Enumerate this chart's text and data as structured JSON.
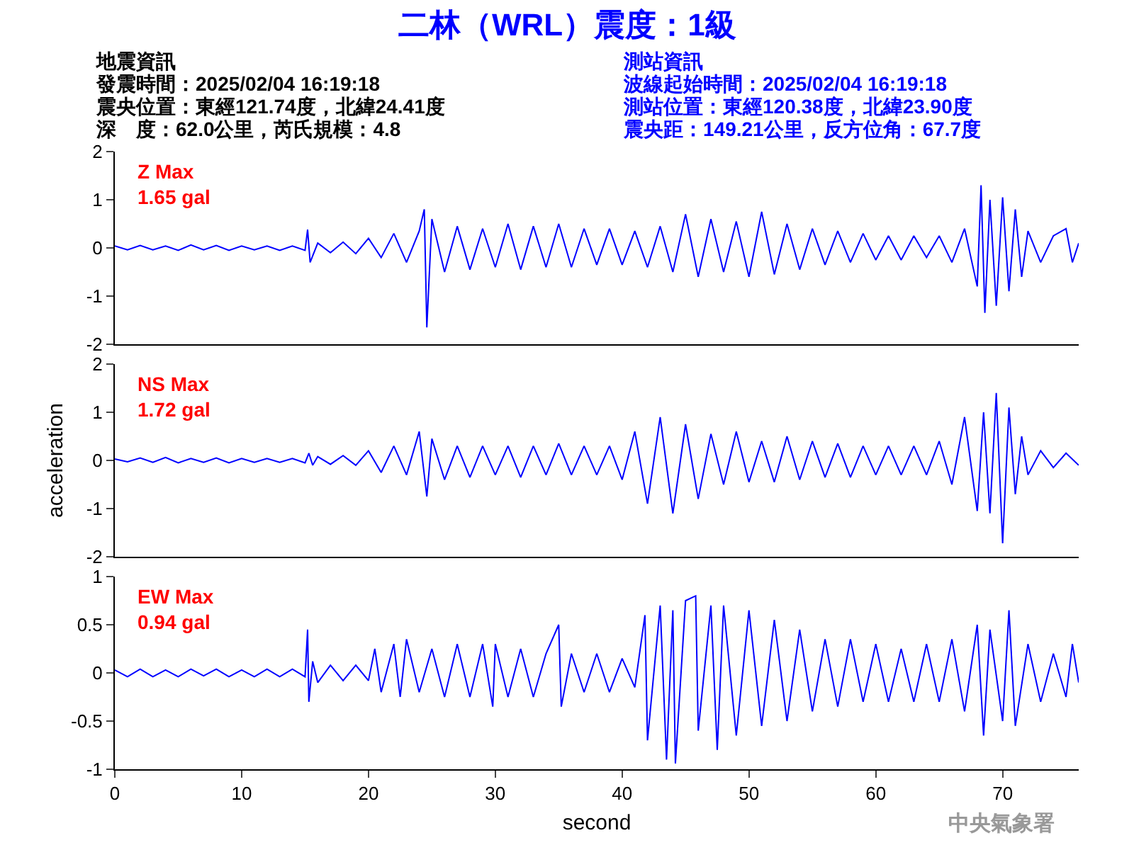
{
  "chart_data": [
    {
      "type": "line",
      "title": "二林（WRL）震度：1級",
      "annotations": [
        "地震資訊",
        "發震時間：2025/02/04 16:19:18",
        "震央位置：東經121.74度，北緯24.41度",
        "深　度：62.0公里，芮氏規模：4.8",
        "測站資訊",
        "波線起始時間：2025/02/04 16:19:18",
        "測站位置：東經120.38度，北緯23.90度",
        "震央距：149.21公里，反方位角：67.7度",
        "Z Max\n1.65 gal"
      ],
      "xlim": [
        0,
        76
      ],
      "ylim": [
        -2,
        2
      ],
      "yticks": [
        -2,
        -1,
        0,
        1,
        2
      ],
      "tick_labels": "y",
      "marker": "none",
      "line_style": "solid",
      "series": [
        {
          "color": "#0000ff",
          "x": [
            0,
            1,
            2,
            3,
            4,
            5,
            6,
            7,
            8,
            9,
            10,
            11,
            12,
            13,
            14,
            15,
            15.2,
            15.4,
            16,
            17,
            18,
            19,
            20,
            21,
            22,
            23,
            24,
            24.4,
            24.6,
            25,
            26,
            27,
            28,
            29,
            30,
            31,
            32,
            33,
            34,
            35,
            36,
            37,
            38,
            39,
            40,
            41,
            42,
            43,
            44,
            45,
            46,
            47,
            48,
            49,
            50,
            51,
            52,
            53,
            54,
            55,
            56,
            57,
            58,
            59,
            60,
            61,
            62,
            63,
            64,
            65,
            66,
            67,
            68,
            68.3,
            68.6,
            69,
            69.5,
            70,
            70.5,
            71,
            71.5,
            72,
            73,
            74,
            75,
            75.5,
            76
          ],
          "values": [
            0.04,
            -0.04,
            0.05,
            -0.04,
            0.04,
            -0.05,
            0.06,
            -0.04,
            0.05,
            -0.05,
            0.04,
            -0.04,
            0.04,
            -0.05,
            0.04,
            -0.05,
            0.38,
            -0.3,
            0.1,
            -0.1,
            0.12,
            -0.12,
            0.2,
            -0.2,
            0.3,
            -0.3,
            0.35,
            0.8,
            -1.65,
            0.6,
            -0.5,
            0.45,
            -0.45,
            0.4,
            -0.4,
            0.5,
            -0.45,
            0.45,
            -0.4,
            0.5,
            -0.4,
            0.4,
            -0.35,
            0.4,
            -0.35,
            0.35,
            -0.4,
            0.45,
            -0.5,
            0.7,
            -0.6,
            0.6,
            -0.5,
            0.55,
            -0.6,
            0.75,
            -0.55,
            0.5,
            -0.45,
            0.4,
            -0.35,
            0.35,
            -0.3,
            0.3,
            -0.25,
            0.25,
            -0.25,
            0.25,
            -0.2,
            0.25,
            -0.3,
            0.4,
            -0.8,
            1.3,
            -1.35,
            1.0,
            -1.2,
            1.05,
            -0.9,
            0.8,
            -0.6,
            0.35,
            -0.3,
            0.25,
            0.4,
            -0.3,
            0.1
          ]
        }
      ]
    },
    {
      "type": "line",
      "ylabel": "acceleration",
      "annotations": [
        "NS Max\n1.72 gal"
      ],
      "xlim": [
        0,
        76
      ],
      "ylim": [
        -2,
        2
      ],
      "yticks": [
        -2,
        -1,
        0,
        1,
        2
      ],
      "tick_labels": "y",
      "marker": "none",
      "line_style": "solid",
      "series": [
        {
          "color": "#0000ff",
          "x": [
            0,
            1,
            2,
            3,
            4,
            5,
            6,
            7,
            8,
            9,
            10,
            11,
            12,
            13,
            14,
            15,
            15.3,
            15.6,
            16,
            17,
            18,
            19,
            20,
            21,
            22,
            23,
            24,
            24.6,
            25,
            26,
            27,
            28,
            29,
            30,
            31,
            32,
            33,
            34,
            35,
            36,
            37,
            38,
            39,
            40,
            41,
            42,
            43,
            44,
            45,
            46,
            47,
            48,
            49,
            50,
            51,
            52,
            53,
            54,
            55,
            56,
            57,
            58,
            59,
            60,
            61,
            62,
            63,
            64,
            65,
            66,
            67,
            68,
            68.5,
            69,
            69.5,
            70,
            70.5,
            71,
            71.5,
            72,
            73,
            74,
            75,
            76
          ],
          "values": [
            0.03,
            -0.03,
            0.05,
            -0.04,
            0.06,
            -0.05,
            0.04,
            -0.04,
            0.05,
            -0.05,
            0.04,
            -0.04,
            0.04,
            -0.04,
            0.04,
            -0.05,
            0.15,
            -0.1,
            0.08,
            -0.08,
            0.1,
            -0.1,
            0.2,
            -0.25,
            0.3,
            -0.3,
            0.6,
            -0.75,
            0.45,
            -0.4,
            0.3,
            -0.35,
            0.3,
            -0.3,
            0.3,
            -0.35,
            0.3,
            -0.3,
            0.35,
            -0.3,
            0.3,
            -0.3,
            0.3,
            -0.4,
            0.6,
            -0.9,
            0.9,
            -1.1,
            0.75,
            -0.8,
            0.55,
            -0.5,
            0.6,
            -0.45,
            0.4,
            -0.45,
            0.5,
            -0.4,
            0.4,
            -0.35,
            0.35,
            -0.35,
            0.3,
            -0.3,
            0.3,
            -0.3,
            0.3,
            -0.3,
            0.4,
            -0.5,
            0.9,
            -1.05,
            1.0,
            -1.1,
            1.4,
            -1.72,
            1.1,
            -0.7,
            0.5,
            -0.3,
            0.2,
            -0.15,
            0.15,
            -0.1
          ]
        }
      ]
    },
    {
      "type": "line",
      "xlabel": "second",
      "annotations": [
        "EW Max\n0.94 gal",
        "中央氣象署"
      ],
      "xlim": [
        0,
        76
      ],
      "xticks": [
        0,
        10,
        20,
        30,
        40,
        50,
        60,
        70
      ],
      "ylim": [
        -1,
        1
      ],
      "yticks": [
        -1,
        -0.5,
        0,
        0.5,
        1
      ],
      "marker": "none",
      "line_style": "solid",
      "series": [
        {
          "color": "#0000ff",
          "x": [
            0,
            1,
            2,
            3,
            4,
            5,
            6,
            7,
            8,
            9,
            10,
            11,
            12,
            13,
            14,
            15,
            15.2,
            15.3,
            15.6,
            16,
            17,
            18,
            19,
            20,
            20.5,
            21,
            22,
            22.5,
            23,
            24,
            25,
            26,
            27,
            28,
            29,
            29.8,
            30,
            31,
            32,
            33,
            34,
            35,
            35.2,
            36,
            37,
            38,
            39,
            40,
            41,
            41.8,
            42,
            43,
            43.5,
            44,
            44.2,
            45,
            45.8,
            46,
            47,
            47.5,
            48,
            49,
            50,
            51,
            52,
            53,
            54,
            55,
            56,
            57,
            58,
            59,
            60,
            61,
            62,
            63,
            64,
            65,
            66,
            67,
            68,
            68.5,
            69,
            70,
            70.5,
            71,
            72,
            73,
            74,
            75,
            75.5,
            76
          ],
          "values": [
            0.03,
            -0.04,
            0.04,
            -0.04,
            0.03,
            -0.04,
            0.04,
            -0.03,
            0.04,
            -0.04,
            0.03,
            -0.04,
            0.04,
            -0.04,
            0.04,
            -0.04,
            0.45,
            -0.3,
            0.12,
            -0.1,
            0.08,
            -0.08,
            0.08,
            -0.08,
            0.25,
            -0.2,
            0.3,
            -0.25,
            0.35,
            -0.2,
            0.25,
            -0.25,
            0.3,
            -0.25,
            0.3,
            -0.35,
            0.3,
            -0.25,
            0.25,
            -0.25,
            0.2,
            0.5,
            -0.35,
            0.2,
            -0.2,
            0.2,
            -0.2,
            0.15,
            -0.15,
            0.6,
            -0.7,
            0.7,
            -0.9,
            0.65,
            -0.94,
            0.75,
            0.8,
            -0.6,
            0.7,
            -0.8,
            0.7,
            -0.65,
            0.65,
            -0.55,
            0.55,
            -0.5,
            0.45,
            -0.4,
            0.35,
            -0.35,
            0.35,
            -0.3,
            0.3,
            -0.3,
            0.25,
            -0.3,
            0.3,
            -0.3,
            0.35,
            -0.4,
            0.5,
            -0.65,
            0.45,
            -0.5,
            0.65,
            -0.55,
            0.3,
            -0.3,
            0.2,
            -0.25,
            0.3,
            -0.1
          ]
        }
      ]
    }
  ]
}
